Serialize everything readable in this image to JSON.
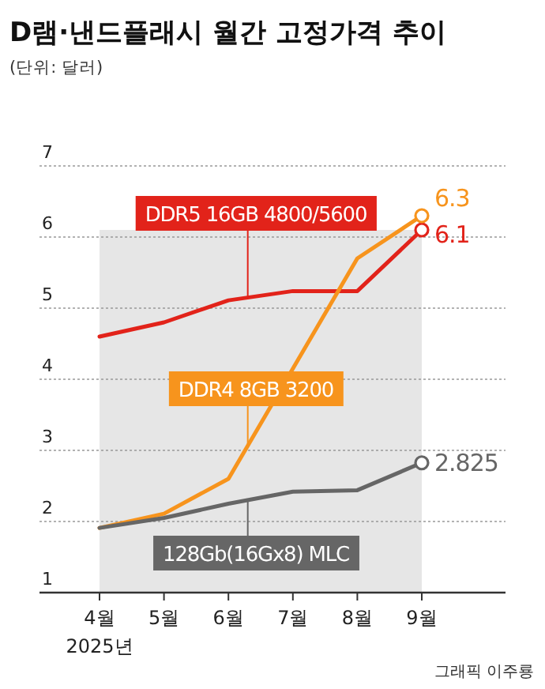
{
  "chart_data": {
    "type": "line",
    "title": "D램·낸드플래시 월간 고정가격 추이",
    "subtitle": "(단위: 달러)",
    "categories": [
      "4월",
      "5월",
      "6월",
      "7월",
      "8월",
      "9월"
    ],
    "series": [
      {
        "name": "DDR5 16GB 4800/5600",
        "color": "#e2231a",
        "values": [
          4.6,
          4.8,
          5.11,
          5.24,
          5.24,
          6.1
        ],
        "value_labels": [
          null,
          null,
          null,
          null,
          null,
          "6.1"
        ]
      },
      {
        "name": "DDR4 8GB 3200",
        "color": "#f7941d",
        "values": [
          1.91,
          2.11,
          2.6,
          4.15,
          5.7,
          6.3
        ],
        "value_labels": [
          null,
          null,
          null,
          null,
          null,
          "6.3"
        ]
      },
      {
        "name": "128Gb(16Gx8) MLC",
        "color": "#666666",
        "values": [
          1.91,
          2.05,
          2.25,
          2.42,
          2.44,
          2.825
        ],
        "value_labels": [
          null,
          null,
          null,
          null,
          null,
          "2.825"
        ]
      }
    ],
    "ylim": [
      1,
      7
    ],
    "yticks": [
      1,
      2,
      3,
      4,
      5,
      6,
      7
    ],
    "grid": "y",
    "legend": false,
    "bands": [
      {
        "axis": "x",
        "from": "4월",
        "to": "9월",
        "color": "#e6e6e6"
      }
    ],
    "annotations": [
      "2025년",
      "그래픽 이주룡"
    ]
  }
}
